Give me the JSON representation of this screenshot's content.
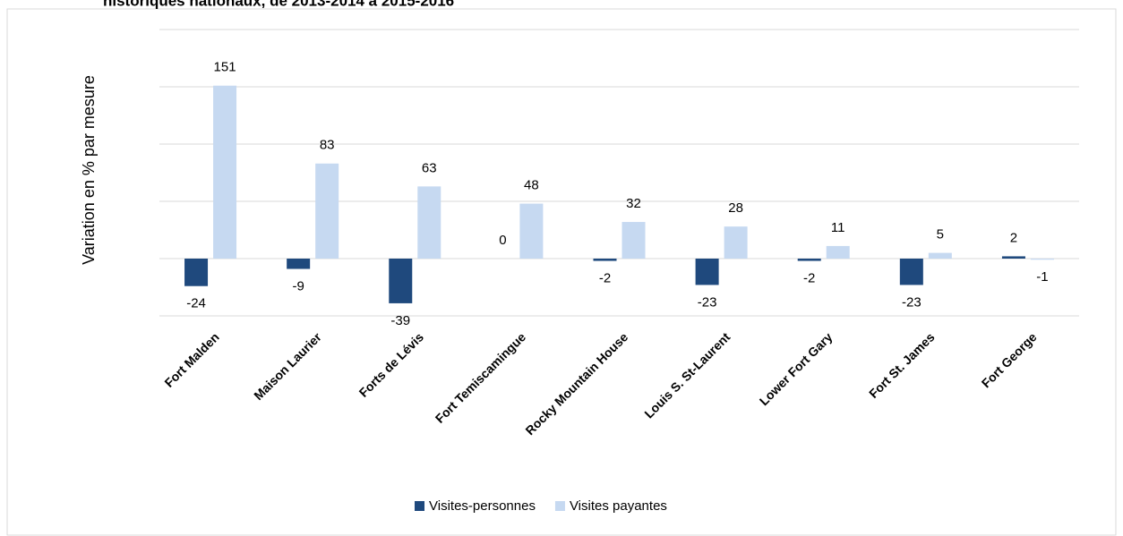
{
  "chart_data": {
    "type": "bar",
    "title": "historiques nationaux, de 2013-2014 à 2015-2016",
    "y_label": "Variation en % par mesure",
    "categories": [
      "Fort Malden",
      "Maison Laurier",
      "Forts de Lévis",
      "Fort Temiscamingue",
      "Rocky Mountain House",
      "Louis S. St-Laurent",
      "Lower Fort Gary",
      "Fort St. James",
      "Fort George"
    ],
    "series": [
      {
        "name": "Visites-personnes",
        "color": "#1f497d",
        "values": [
          -24,
          -9,
          -39,
          0,
          -2,
          -23,
          -2,
          -23,
          2
        ]
      },
      {
        "name": "Visites payantes",
        "color": "#c6d9f1",
        "values": [
          151,
          83,
          63,
          48,
          32,
          28,
          11,
          5,
          -1
        ]
      }
    ],
    "ylim": [
      -50,
      200
    ],
    "yticks": [
      -50,
      0,
      50,
      100,
      150,
      200
    ],
    "grid": true,
    "legend": "bottom"
  }
}
